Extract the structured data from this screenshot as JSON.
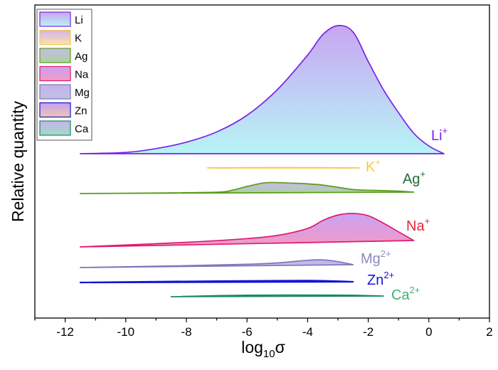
{
  "chart_data": {
    "type": "area",
    "subtype": "ridgeline",
    "title": "",
    "xlabel": {
      "base": "log",
      "sub": "10",
      "tail": "σ"
    },
    "ylabel": "Relative quantity",
    "xlim": [
      -13,
      2
    ],
    "xticks": [
      "-12",
      "-10",
      "-8",
      "-6",
      "-4",
      "-2",
      "0",
      "2"
    ],
    "xtick_values": [
      -12,
      -10,
      -8,
      -6,
      -4,
      -2,
      0,
      2
    ],
    "grid": false,
    "legend_position": "top-left",
    "series": [
      {
        "name": "Li",
        "label": "Li",
        "sup": "+",
        "line": "#7b22e6",
        "fill_top": "#c7a6f2",
        "fill_bottom": "#b8f4f6",
        "label_color": "#7b22e6",
        "x": [
          -11.5,
          -10,
          -9,
          -8,
          -7,
          -6,
          -5,
          -4,
          -3.5,
          -3,
          -2.5,
          -2,
          -1.5,
          -1,
          -0.5,
          0,
          0.5
        ],
        "y": [
          0,
          0.01,
          0.04,
          0.09,
          0.17,
          0.3,
          0.5,
          0.77,
          0.93,
          1.0,
          0.95,
          0.72,
          0.5,
          0.32,
          0.16,
          0.06,
          0
        ]
      },
      {
        "name": "K",
        "label": "K",
        "sup": "+",
        "line": "#f7c948",
        "fill_top": "#d7b0f0",
        "fill_bottom": "#fbe3a8",
        "label_color": "#f7c948",
        "x": [
          -7.3,
          -5,
          -2.3
        ],
        "y": [
          0,
          0.003,
          0
        ]
      },
      {
        "name": "Ag",
        "label": "Ag",
        "sup": "+",
        "line": "#5a9c1c",
        "fill_top": "#c9b8ee",
        "fill_bottom": "#a9d59a",
        "label_color": "#1f6b35",
        "x": [
          -11.5,
          -9,
          -7,
          -6.5,
          -6,
          -5.5,
          -5.2,
          -4.5,
          -4,
          -3.5,
          -3,
          -2.5,
          -2,
          -1.5,
          -1,
          -0.5
        ],
        "y": [
          0,
          0.002,
          0.006,
          0.02,
          0.05,
          0.075,
          0.08,
          0.074,
          0.068,
          0.058,
          0.04,
          0.022,
          0.016,
          0.013,
          0.008,
          0
        ]
      },
      {
        "name": "Na",
        "label": "Na",
        "sup": "+",
        "line": "#e0196f",
        "fill_top": "#c8a2f2",
        "fill_bottom": "#f39ac5",
        "label_color": "#e8253a",
        "x": [
          -11.5,
          -8,
          -6,
          -5,
          -4,
          -3.5,
          -3,
          -2.5,
          -2,
          -1.5,
          -1,
          -0.5
        ],
        "y": [
          0,
          0.02,
          0.04,
          0.06,
          0.11,
          0.17,
          0.21,
          0.22,
          0.2,
          0.14,
          0.07,
          0
        ]
      },
      {
        "name": "Mg",
        "label": "Mg",
        "sup": "2+",
        "line": "#7b78b8",
        "fill_top": "#c6b2ee",
        "fill_bottom": "#c0c0e4",
        "label_color": "#8a8abd",
        "x": [
          -11.5,
          -8,
          -6,
          -5,
          -4,
          -3.5,
          -3,
          -2.5
        ],
        "y": [
          0,
          0.006,
          0.012,
          0.02,
          0.038,
          0.04,
          0.025,
          0
        ]
      },
      {
        "name": "Zn",
        "label": "Zn",
        "sup": "2+",
        "line": "#1414d4",
        "fill_top": "#c4a0f4",
        "fill_bottom": "#f2c4ae",
        "label_color": "#1414d4",
        "x": [
          -11.5,
          -7,
          -4,
          -2.5
        ],
        "y": [
          0,
          0.008,
          0.01,
          0
        ]
      },
      {
        "name": "Ca",
        "label": "Ca",
        "sup": "2+",
        "line": "#1a8a5c",
        "fill_top": "#c6b2ee",
        "fill_bottom": "#9fdcc4",
        "label_color": "#3cb36e",
        "x": [
          -8.5,
          -6,
          -3,
          -1.5
        ],
        "y": [
          0,
          0.01,
          0.008,
          0
        ]
      }
    ]
  }
}
